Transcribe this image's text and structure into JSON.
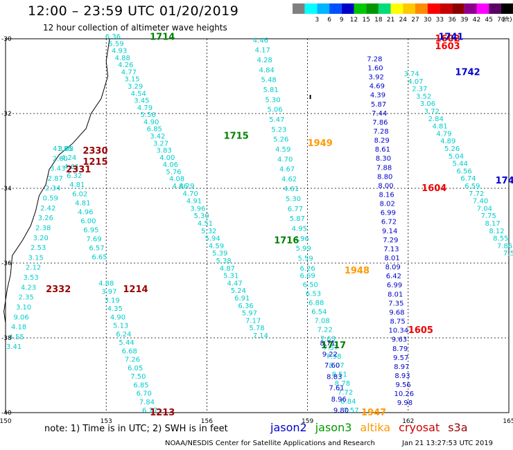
{
  "header": {
    "title": "12:00 – 23:59 UTC 01/20/2019",
    "subtitle": "12 hour collection of altimeter wave heights"
  },
  "colorbar": {
    "unit": "(ft)",
    "bins": [
      {
        "color": "#808080",
        "label": ""
      },
      {
        "color": "#00ffff",
        "label": "3"
      },
      {
        "color": "#00b4ff",
        "label": "6"
      },
      {
        "color": "#0050ff",
        "label": "9"
      },
      {
        "color": "#0000c8",
        "label": "12"
      },
      {
        "color": "#00c800",
        "label": "15"
      },
      {
        "color": "#009600",
        "label": "18"
      },
      {
        "color": "#00dc78",
        "label": "21"
      },
      {
        "color": "#ffff00",
        "label": "24"
      },
      {
        "color": "#ffc800",
        "label": "27"
      },
      {
        "color": "#ff8c00",
        "label": "30"
      },
      {
        "color": "#ff0000",
        "label": "33"
      },
      {
        "color": "#c80000",
        "label": "36"
      },
      {
        "color": "#8c0000",
        "label": "39"
      },
      {
        "color": "#8c008c",
        "label": "42"
      },
      {
        "color": "#ff00ff",
        "label": "45"
      },
      {
        "color": "#5a0064",
        "label": "70"
      },
      {
        "color": "#000000",
        "label": ""
      }
    ]
  },
  "axes": {
    "lon_labels": [
      "150",
      "153",
      "156",
      "159",
      "162",
      "165"
    ],
    "lat_labels": [
      "-30",
      "-32",
      "-34",
      "-36",
      "-38",
      "-40"
    ],
    "lon_range": [
      150,
      165
    ],
    "lat_range": [
      -40,
      -30
    ]
  },
  "satellite_colors": {
    "cryosat": "#808080",
    "jason2": "#00cccc",
    "jason3": "#0000cc",
    "altika": "#ff9900",
    "s3a": "#cc0000",
    "time_j2": "#0000cc",
    "time_j3": "#008000",
    "time_alt": "#ff9900",
    "time_cry": "#990000",
    "time_s3a": "#ee0000"
  },
  "tracks": [
    {
      "name": "track-coastal-south",
      "sat": "jason2",
      "lon_start": 150.25,
      "lon_end": 151.7,
      "lat_start": -38.3,
      "lat_end": -33.0,
      "values": [
        "3.41",
        "4.55",
        "4.18",
        "9.06",
        "3.10",
        "2.35",
        "4.23",
        "3.53",
        "2.12",
        "3.15",
        "2.53",
        "3.20",
        "2.38",
        "3.26",
        "2.42",
        "0.59",
        "2.34",
        "2.87",
        "3.43",
        "2.60",
        "41.85"
      ]
    },
    {
      "name": "track-coastal-north",
      "sat": "jason2",
      "lon_start": 152.8,
      "lon_end": 151.8,
      "lat_start": -35.9,
      "lat_end": -33.0,
      "values": [
        "6.65",
        "6.57",
        "7.69",
        "6.95",
        "6.00",
        "4.96",
        "4.81",
        "6.02",
        "4.81",
        "6.32",
        "4.61",
        "4.24",
        "3.08"
      ]
    },
    {
      "name": "track-1714",
      "sat": "jason2",
      "lon_start": 153.2,
      "lon_end": 155.2,
      "lat_start": -30.0,
      "lat_end": -34.0,
      "values": [
        "6.36",
        "5.59",
        "4.93",
        "4.88",
        "4.26",
        "4.77",
        "3.15",
        "3.29",
        "4.54",
        "3.45",
        "4.79",
        "5.56",
        "4.90",
        "6.85",
        "3.42",
        "3.27",
        "3.83",
        "4.00",
        "4.06",
        "5.76",
        "4.08",
        "4.86"
      ]
    },
    {
      "name": "track-1215",
      "sat": "jason2",
      "lon_start": 153.0,
      "lon_end": 154.3,
      "lat_start": -36.6,
      "lat_end": -40.0,
      "values": [
        "4.88",
        "3.97",
        "3.19",
        "4.35",
        "4.90",
        "5.13",
        "6.24",
        "5.44",
        "6.68",
        "7.26",
        "6.05",
        "7.50",
        "6.85",
        "6.70",
        "7.84",
        "6.77"
      ]
    },
    {
      "name": "track-1715",
      "sat": "jason2",
      "lon_start": 155.4,
      "lon_end": 157.6,
      "lat_start": -34.0,
      "lat_end": -38.0,
      "values": [
        "4.29",
        "4.70",
        "4.91",
        "3.96",
        "5.30",
        "4.51",
        "5.32",
        "5.94",
        "4.59",
        "5.39",
        "5.38",
        "4.87",
        "5.31",
        "4.47",
        "5.24",
        "6.91",
        "6.36",
        "5.97",
        "7.17",
        "5.78",
        "7.14"
      ]
    },
    {
      "name": "track-1716-upper",
      "sat": "jason2",
      "lon_start": 157.6,
      "lon_end": 159.0,
      "lat_start": -30.1,
      "lat_end": -36.2,
      "values": [
        "4.46",
        "4.17",
        "4.28",
        "4.84",
        "5.48",
        "5.81",
        "5.30",
        "5.06",
        "5.47",
        "5.23",
        "5.26",
        "4.59",
        "4.70",
        "4.67",
        "4.62",
        "4.61",
        "5.30",
        "6.77",
        "5.87",
        "4.95",
        "4.96",
        "5.99",
        "5.59",
        "6.26"
      ]
    },
    {
      "name": "track-1716-lower",
      "sat": "jason2",
      "lon_start": 159.0,
      "lon_end": 160.3,
      "lat_start": -36.4,
      "lat_end": -40.0,
      "values": [
        "6.69",
        "6.50",
        "6.53",
        "6.88",
        "6.54",
        "7.08",
        "7.22",
        "7.63",
        "7.57",
        "7.58",
        "8.07",
        "8.51",
        "8.78",
        "7.72",
        "6.84",
        "7.57"
      ]
    },
    {
      "name": "track-1717",
      "sat": "jason3",
      "lon_start": 159.6,
      "lon_end": 160.0,
      "lat_start": -38.2,
      "lat_end": -40.0,
      "values": [
        "8.71",
        "9.22",
        "7.60",
        "8.83",
        "7.61",
        "8.96",
        "9.80"
      ]
    },
    {
      "name": "track-1604",
      "sat": "jason3",
      "lon_start": 161.0,
      "lon_end": 161.9,
      "lat_start": -30.6,
      "lat_end": -39.8,
      "values": [
        "7.28",
        "1.60",
        "3.92",
        "4.69",
        "4.39",
        "5.87",
        "7.44",
        "7.86",
        "7.28",
        "8.29",
        "8.61",
        "8.30",
        "7.88",
        "8.80",
        "8.00",
        "8.16",
        "8.02",
        "6.99",
        "6.72",
        "9.14",
        "7.29",
        "7.13",
        "8.01",
        "8.09",
        "6.42",
        "6.99",
        "8.01",
        "7.35",
        "9.68",
        "8.75",
        "10.34",
        "9.63",
        "8.79",
        "9.57",
        "8.97",
        "8.93",
        "9.56",
        "10.26",
        "9.98"
      ]
    },
    {
      "name": "track-1742",
      "sat": "jason2",
      "lon_start": 162.1,
      "lon_end": 165.0,
      "lat_start": -31.0,
      "lat_end": -35.8,
      "values": [
        "3.74",
        "4.07",
        "2.37",
        "3.52",
        "3.06",
        "3.72",
        "2.84",
        "4.81",
        "4.79",
        "4.89",
        "5.26",
        "5.04",
        "5.44",
        "6.56",
        "6.74",
        "6.59",
        "7.72",
        "7.40",
        "7.04",
        "7.75",
        "8.17",
        "8.12",
        "8.55",
        "7.86",
        "7.5"
      ]
    }
  ],
  "track_labels": [
    {
      "text": "1714",
      "sat": "time_j3",
      "lon": 154.3,
      "lat": -29.95
    },
    {
      "text": "1715",
      "sat": "time_j3",
      "lon": 156.5,
      "lat": -32.6
    },
    {
      "text": "1716",
      "sat": "time_j3",
      "lon": 158.0,
      "lat": -35.4
    },
    {
      "text": "1717",
      "sat": "time_j3",
      "lon": 159.4,
      "lat": -38.2
    },
    {
      "text": "1213",
      "sat": "time_cry",
      "lon": 154.3,
      "lat": -40.0
    },
    {
      "text": "1214",
      "sat": "time_cry",
      "lon": 153.5,
      "lat": -36.7
    },
    {
      "text": "1215",
      "sat": "time_cry",
      "lon": 152.3,
      "lat": -33.3
    },
    {
      "text": "2330",
      "sat": "time_cry",
      "lon": 152.3,
      "lat": -33.0
    },
    {
      "text": "2331",
      "sat": "time_cry",
      "lon": 151.8,
      "lat": -33.5
    },
    {
      "text": "2332",
      "sat": "time_cry",
      "lon": 151.2,
      "lat": -36.7
    },
    {
      "text": "1949",
      "sat": "time_alt",
      "lon": 159.0,
      "lat": -32.8
    },
    {
      "text": "1948",
      "sat": "time_alt",
      "lon": 160.1,
      "lat": -36.2
    },
    {
      "text": "1947",
      "sat": "time_alt",
      "lon": 160.6,
      "lat": -40.0
    },
    {
      "text": "1603",
      "sat": "time_s3a",
      "lon": 162.8,
      "lat": -30.2
    },
    {
      "text": "1602",
      "sat": "time_s3a",
      "lon": 162.8,
      "lat": -30.0
    },
    {
      "text": "1604",
      "sat": "time_s3a",
      "lon": 162.4,
      "lat": -34.0
    },
    {
      "text": "1605",
      "sat": "time_s3a",
      "lon": 162.0,
      "lat": -37.8
    },
    {
      "text": "1742",
      "sat": "time_j2",
      "lon": 163.4,
      "lat": -30.9
    },
    {
      "text": "1741",
      "sat": "time_j2",
      "lon": 162.9,
      "lat": -29.95
    },
    {
      "text": "174",
      "sat": "time_j2",
      "lon": 164.6,
      "lat": -33.8
    }
  ],
  "note": "note:  1) Time is in UTC;  2) SWH is in feet",
  "legend": [
    {
      "label": "jason2",
      "color": "#0000cc"
    },
    {
      "label": "jason3",
      "color": "#009900"
    },
    {
      "label": "altika",
      "color": "#ff9900"
    },
    {
      "label": "cryosat",
      "color": "#cc0000"
    },
    {
      "label": "s3a",
      "color": "#990000"
    }
  ],
  "footer": {
    "credit": "NOAA/NESDIS Center for Satellite Applications and Research",
    "timestamp": "Jan 21 13:27:53 UTC 2019"
  }
}
